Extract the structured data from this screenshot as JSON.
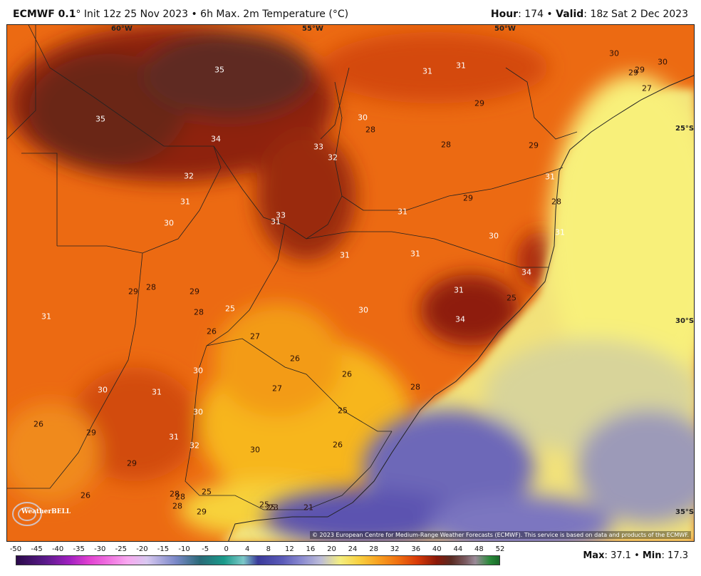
{
  "header": {
    "model": "ECMWF 0.1",
    "degree": "°",
    "init": " Init 12z 25 Nov 2023 • 6h Max. 2m Temperature (°C)",
    "hour_label": "Hour",
    "hour_value": ": 174 • ",
    "valid_label": "Valid",
    "valid_value": ": 18z Sat 2 Dec 2023"
  },
  "map": {
    "coord_labels": [
      {
        "text": "60°W"
      },
      {
        "text": "55°W"
      },
      {
        "text": "50°W"
      },
      {
        "text": "25°S"
      },
      {
        "text": "30°S"
      },
      {
        "text": "35°S"
      }
    ],
    "value_labels": [
      "35",
      "35",
      "34",
      "32",
      "31",
      "30",
      "33",
      "32",
      "33",
      "31",
      "30",
      "28",
      "28",
      "31",
      "31",
      "29",
      "29",
      "30",
      "29",
      "29",
      "30",
      "27",
      "31",
      "31",
      "31",
      "30",
      "29",
      "28",
      "29",
      "28",
      "25",
      "26",
      "27",
      "26",
      "30",
      "27",
      "26",
      "31",
      "25",
      "34",
      "31",
      "34",
      "25",
      "30",
      "31",
      "30",
      "28",
      "25",
      "26",
      "32",
      "30",
      "29",
      "31",
      "26",
      "26",
      "29",
      "28",
      "28",
      "28",
      "25",
      "25",
      "23",
      "21",
      "29",
      "30",
      "31",
      "31",
      "28",
      "29",
      "29"
    ],
    "copyright": "© 2023 European Centre for Medium-Range Weather Forecasts (ECMWF). This service is based on data and products of the ECMWF.",
    "logo_text": "WeatherBELL"
  },
  "colorbar": {
    "ticks": [
      "-50",
      "-45",
      "-40",
      "-35",
      "-30",
      "-25",
      "-20",
      "-15",
      "-10",
      "-5",
      "0",
      "4",
      "8",
      "12",
      "16",
      "20",
      "24",
      "28",
      "32",
      "36",
      "40",
      "44",
      "48",
      "52"
    ]
  },
  "stats": {
    "max_label": "Max",
    "max_value": ": 37.1 • ",
    "min_label": "Min",
    "min_value": ": 17.3"
  }
}
